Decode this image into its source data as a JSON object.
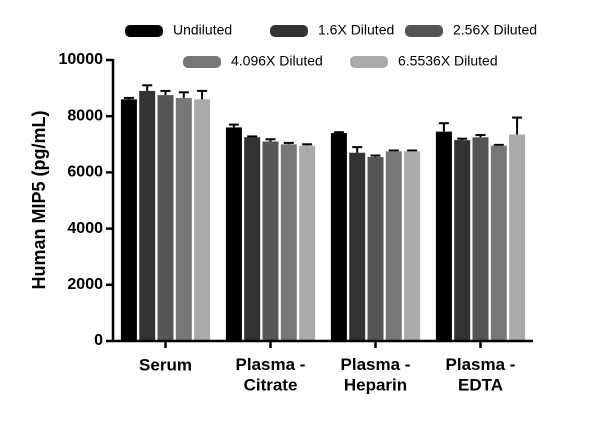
{
  "chart_data": {
    "type": "bar",
    "y_label": "Human MIP5 (pg/mL)",
    "categories": [
      "Serum",
      "Plasma -\nCitrate",
      "Plasma -\nHeparin",
      "Plasma -\nEDTA"
    ],
    "series": [
      {
        "name": "Undiluted",
        "color": "#000000",
        "values": [
          8600,
          7600,
          7400,
          7450
        ],
        "errors": [
          50,
          100,
          30,
          300
        ]
      },
      {
        "name": "1.6X Diluted",
        "color": "#333333",
        "values": [
          8900,
          7250,
          6700,
          7150
        ],
        "errors": [
          200,
          30,
          200,
          50
        ]
      },
      {
        "name": "2.56X Diluted",
        "color": "#555555",
        "values": [
          8750,
          7100,
          6550,
          7250
        ],
        "errors": [
          150,
          80,
          50,
          80
        ]
      },
      {
        "name": "4.096X Diluted",
        "color": "#777777",
        "values": [
          8650,
          7000,
          6750,
          6950
        ],
        "errors": [
          200,
          50,
          30,
          30
        ]
      },
      {
        "name": "6.5536X Diluted",
        "color": "#aaaaaa",
        "values": [
          8600,
          6950,
          6750,
          7350
        ],
        "errors": [
          300,
          50,
          30,
          600
        ]
      }
    ],
    "ylim": [
      0,
      10000
    ],
    "yticks": [
      0,
      2000,
      4000,
      6000,
      8000,
      10000
    ]
  }
}
